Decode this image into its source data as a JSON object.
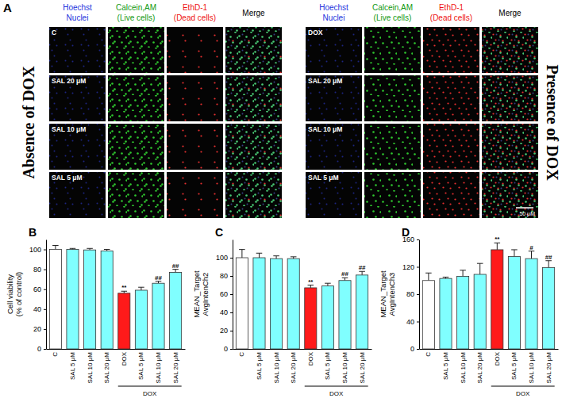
{
  "panel_a": {
    "label": "A",
    "columns": [
      [
        "Hoechst",
        "Nuclei"
      ],
      [
        "Calcein,AM",
        "(Live cells)"
      ],
      [
        "EthD-1",
        "(Dead cells)"
      ],
      [
        "Merge"
      ]
    ],
    "column_colors": [
      "#2233dd",
      "#119911",
      "#ee1111",
      "#000000"
    ],
    "sides": [
      {
        "title": "Absence of DOX",
        "rows": [
          "C",
          "SAL 20 μM",
          "SAL 10 μM",
          "SAL 5 μM"
        ]
      },
      {
        "title": "Presence of DOX",
        "rows": [
          "DOX",
          "SAL 20 μM",
          "SAL 10 μM",
          "SAL 5 μM"
        ]
      }
    ],
    "scale_bar": "50 μM"
  },
  "chart_data": [
    {
      "type": "bar",
      "title": "B",
      "y_label": [
        "Cell viability",
        "(% of control)"
      ],
      "categories": [
        "C",
        "SAL 5 μM",
        "SAL 10 μM",
        "SAL 20 μM",
        "DOX",
        "SAL 5 μM",
        "SAL 10 μM",
        "SAL 20 μM"
      ],
      "values": [
        100,
        100,
        99.5,
        98.5,
        56,
        59,
        66,
        77
      ],
      "errors": [
        4,
        1,
        1.5,
        1.5,
        2,
        3,
        2,
        3
      ],
      "sig_labels": [
        null,
        null,
        null,
        null,
        "**",
        null,
        "##",
        "##"
      ],
      "group_label": {
        "text": "DOX",
        "first": 4,
        "last": 7
      },
      "colors": [
        "#ffffff",
        "#80ffff",
        "#80ffff",
        "#80ffff",
        "#ff1a1a",
        "#80ffff",
        "#80ffff",
        "#80ffff"
      ],
      "ylim": [
        0,
        110
      ],
      "yticks": [
        0,
        20,
        40,
        60,
        80,
        100
      ]
    },
    {
      "type": "bar",
      "title": "C",
      "y_label": [
        "MEAN_Target",
        "AvgIntenCh2"
      ],
      "categories": [
        "C",
        "SAL 5 μM",
        "SAL 10 μM",
        "SAL 20 μM",
        "DOX",
        "SAL 5 μM",
        "SAL 10 μM",
        "SAL 20 μM"
      ],
      "values": [
        100,
        100,
        99,
        99,
        67,
        69,
        75,
        81
      ],
      "errors": [
        9,
        5,
        3,
        2,
        3,
        3,
        3,
        4
      ],
      "sig_labels": [
        null,
        null,
        null,
        null,
        "**",
        null,
        "##",
        "##"
      ],
      "group_label": {
        "text": "DOX",
        "first": 4,
        "last": 7
      },
      "colors": [
        "#ffffff",
        "#80ffff",
        "#80ffff",
        "#80ffff",
        "#ff1a1a",
        "#80ffff",
        "#80ffff",
        "#80ffff"
      ],
      "ylim": [
        0,
        120
      ],
      "yticks": [
        0,
        20,
        40,
        60,
        80,
        100
      ]
    },
    {
      "type": "bar",
      "title": "D",
      "y_label": [
        "MEAN_Target",
        "AvgIntenCh3"
      ],
      "categories": [
        "C",
        "SAL 5 μM",
        "SAL 10 μM",
        "SAL 20 μM",
        "DOX",
        "SAL 5 μM",
        "SAL 10 μM",
        "SAL 20 μM"
      ],
      "values": [
        100,
        103,
        106,
        109,
        145,
        135,
        132,
        119
      ],
      "errors": [
        11,
        2,
        9,
        16,
        10,
        10,
        11,
        10
      ],
      "sig_labels": [
        null,
        null,
        null,
        null,
        "**",
        null,
        "#",
        "##"
      ],
      "group_label": {
        "text": "DOX",
        "first": 4,
        "last": 7
      },
      "colors": [
        "#ffffff",
        "#80ffff",
        "#80ffff",
        "#80ffff",
        "#ff1a1a",
        "#80ffff",
        "#80ffff",
        "#80ffff"
      ],
      "ylim": [
        0,
        160
      ],
      "yticks": [
        0,
        40,
        80,
        120,
        160
      ]
    }
  ]
}
